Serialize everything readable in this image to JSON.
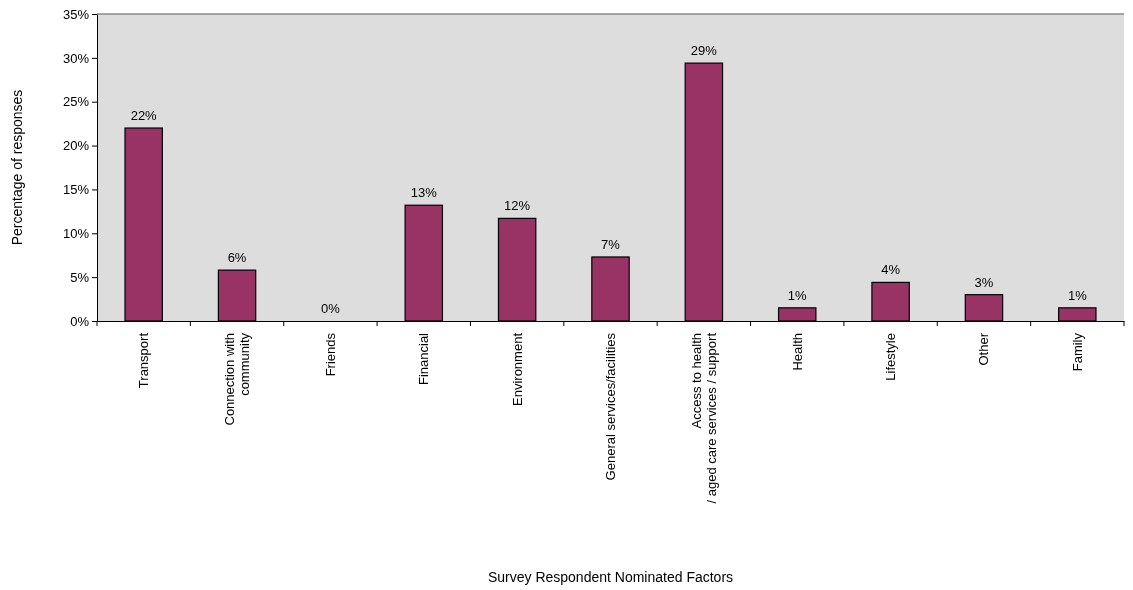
{
  "chart_data": {
    "type": "bar",
    "xlabel": "Survey Respondent Nominated Factors",
    "ylabel": "Percentage of responses",
    "categories": [
      "Transport",
      "Connection with\ncommunity",
      "Friends",
      "Financial",
      "Environment",
      "General services/facilities",
      "Access to health\n/ aged care services / support",
      "Health",
      "Lifestyle",
      "Other",
      "Family"
    ],
    "values": [
      22.0,
      5.8,
      0,
      13.2,
      11.7,
      7.3,
      29.4,
      1.5,
      4.4,
      3.0,
      1.5
    ],
    "value_labels": [
      "22%",
      "6%",
      "0%",
      "13%",
      "12%",
      "7%",
      "29%",
      "1%",
      "4%",
      "3%",
      "1%"
    ],
    "color": "#993366",
    "ylim": [
      0,
      35
    ],
    "yticks": [
      {
        "value": 0,
        "label": "0%"
      },
      {
        "value": 5,
        "label": "5%"
      },
      {
        "value": 10,
        "label": "10%"
      },
      {
        "value": 15,
        "label": "15%"
      },
      {
        "value": 20,
        "label": "20%"
      },
      {
        "value": 25,
        "label": "25%"
      },
      {
        "value": 30,
        "label": "30%"
      },
      {
        "value": 35,
        "label": "35%"
      }
    ],
    "grid": false
  }
}
